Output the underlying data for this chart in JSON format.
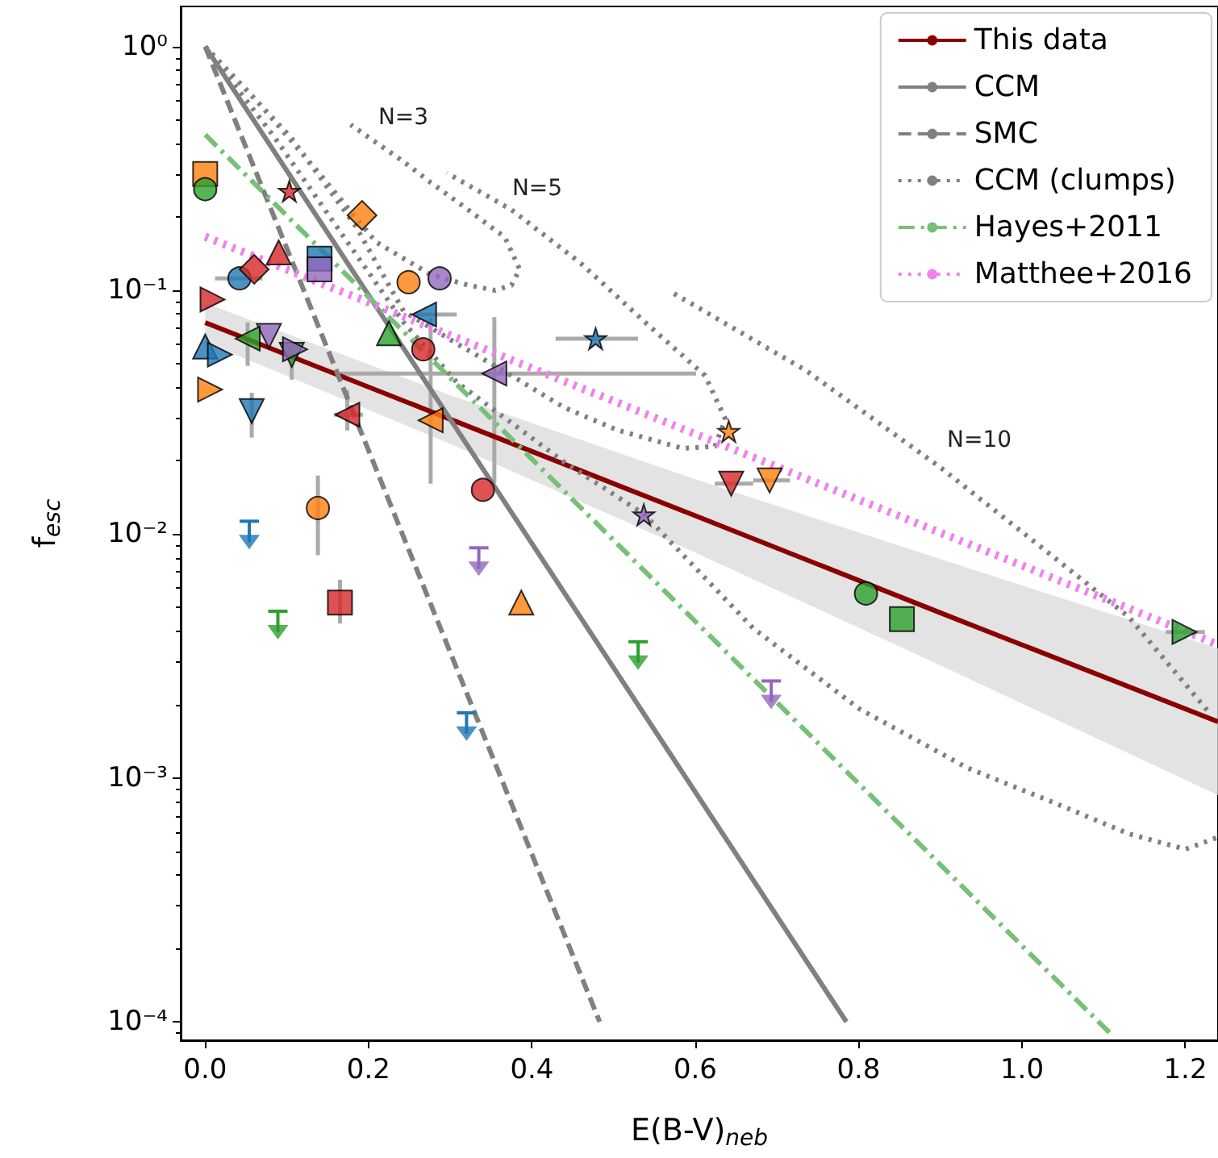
{
  "chart_data": {
    "type": "scatter",
    "xlabel": "E(B-V)$_{neb}$",
    "ylabel": "f$_{esc}$",
    "log": "y",
    "grid": false,
    "legend": "top right",
    "xlim": [
      -0.03,
      1.24
    ],
    "ylim": [
      8.4e-05,
      1.46
    ],
    "xticks": [
      {
        "value": 0,
        "label": "0.0"
      },
      {
        "value": 0.2,
        "label": "0.2"
      },
      {
        "value": 0.4,
        "label": "0.4"
      },
      {
        "value": 0.6,
        "label": "0.6"
      },
      {
        "value": 0.8,
        "label": "0.8"
      },
      {
        "value": 1.0,
        "label": "1.0"
      },
      {
        "value": 1.2,
        "label": "1.2"
      }
    ],
    "yticks": [
      {
        "value": 0.0001,
        "label": "10⁻⁴"
      },
      {
        "value": 0.001,
        "label": "10⁻³"
      },
      {
        "value": 0.01,
        "label": "10⁻²"
      },
      {
        "value": 0.1,
        "label": "10⁻¹"
      },
      {
        "value": 1,
        "label": "10⁰"
      }
    ],
    "annotations": [
      "N=3",
      "N=5",
      "N=10"
    ],
    "series": [
      {
        "name": "This data",
        "type": "line",
        "line_style": "solid",
        "color": "#8b0000",
        "x": [
          0,
          0.3,
          0.6,
          0.9,
          1.24
        ],
        "values": [
          0.0738,
          0.0296,
          0.0119,
          0.00476,
          0.0017
        ],
        "lower": [
          0.0614,
          0.0235,
          0.0084,
          0.0029,
          0.00085
        ],
        "upper": [
          0.0887,
          0.0372,
          0.0168,
          0.0079,
          0.0034
        ]
      },
      {
        "name": "CCM",
        "type": "line",
        "line_style": "solid",
        "color": "#808080",
        "x": [
          0,
          0.785
        ],
        "values": [
          1.0,
          0.0001
        ]
      },
      {
        "name": "SMC",
        "type": "line",
        "line_style": "dashed",
        "color": "#808080",
        "x": [
          0,
          0.483
        ],
        "values": [
          1.0,
          0.0001
        ]
      },
      {
        "name": "CCM (clumps)",
        "type": "line",
        "line_style": "dotted",
        "color": "#808080",
        "x": [
          0,
          0.065,
          0.144,
          0.209,
          0.276,
          0.322,
          0.355,
          0.375,
          0.385,
          0.367,
          0.322,
          0.276,
          0.243,
          0.178,
          null,
          0,
          0.105,
          0.184,
          0.243,
          0.308,
          0.375,
          0.44,
          0.505,
          0.584,
          0.624,
          0.637,
          0.612,
          0.539,
          0.46,
          0.375,
          0.296,
          null,
          0,
          0.085,
          0.174,
          0.243,
          0.308,
          0.44,
          0.537,
          0.671,
          0.801,
          0.933,
          1.032,
          1.131,
          1.2,
          1.239,
          null,
          0.574,
          0.736,
          0.9,
          1.032,
          1.131,
          1.23
        ],
        "values": [
          1.0,
          0.59,
          0.29,
          0.158,
          0.116,
          0.105,
          0.1,
          0.105,
          0.122,
          0.165,
          0.214,
          0.277,
          0.337,
          0.478,
          null,
          1.0,
          0.424,
          0.184,
          0.082,
          0.0605,
          0.0447,
          0.033,
          0.0267,
          0.0225,
          0.0229,
          0.0296,
          0.0447,
          0.0738,
          0.129,
          0.214,
          0.303,
          null,
          1.0,
          0.424,
          0.158,
          0.0738,
          0.042,
          0.0197,
          0.0121,
          0.00411,
          0.00192,
          0.0011,
          0.00081,
          0.00059,
          0.00051,
          0.00057,
          null,
          0.097,
          0.0468,
          0.0188,
          0.0084,
          0.00457,
          0.00184
        ]
      },
      {
        "name": "Hayes+2011",
        "type": "line",
        "line_style": "dashdot",
        "color": "#77c077",
        "x": [
          0,
          1.109
        ],
        "values": [
          0.435,
          8.9e-05
        ]
      },
      {
        "name": "Matthee+2016",
        "type": "line",
        "line_style": "dotted",
        "color": "#ee82ee",
        "x": [
          0,
          1.24
        ],
        "values": [
          0.166,
          0.00353
        ]
      },
      {
        "marker": "circle",
        "x": [
          0.042,
          0.249,
          0.34,
          0.809
        ],
        "values": [
          0.112,
          0.108,
          0.0152,
          0.00571
        ],
        "colors": [
          "#1f77b4",
          "#ff7f0e",
          "#d62728",
          "#2ca02c"
        ],
        "xerrors": [
          [
            0.012,
            0.07
          ],
          null,
          null,
          null
        ]
      },
      {
        "marker": "square",
        "x": [
          0,
          0.14,
          0.14,
          0.165,
          0.853
        ],
        "values": [
          0.3,
          0.135,
          0.122,
          0.00524,
          0.00448
        ],
        "colors": [
          "#ff7f0e",
          "#1f77b4",
          "#9467bd",
          "#d62728",
          "#2ca02c"
        ],
        "errors": [
          null,
          null,
          null,
          [
            0.0043,
            0.0065
          ],
          null
        ]
      },
      {
        "marker": "diamond",
        "x": [
          0.192,
          0.06
        ],
        "values": [
          0.203,
          0.122
        ],
        "colors": [
          "#ff7f0e",
          "#d62728"
        ]
      },
      {
        "marker": "triangle",
        "x": [
          0.09,
          0,
          0.225,
          0.387
        ],
        "values": [
          0.143,
          0.0588,
          0.0667,
          0.00524
        ],
        "colors": [
          "#d62728",
          "#1f77b4",
          "#2ca02c",
          "#ff7f0e"
        ]
      },
      {
        "marker": "triangle-down",
        "x": [
          0.078,
          0.106,
          0.057,
          0.644,
          0.691
        ],
        "values": [
          0.065,
          0.0544,
          0.032,
          0.0161,
          0.0166
        ],
        "colors": [
          "#9467bd",
          "#2ca02c",
          "#1f77b4",
          "#d62728",
          "#ff7f0e"
        ],
        "errors": [
          null,
          [
            0.043,
            0.0605
          ],
          [
            0.0249,
            0.038
          ],
          null,
          null
        ],
        "xerrors": [
          null,
          null,
          null,
          [
            0.624,
            0.671
          ],
          [
            0.671,
            0.716
          ]
        ]
      },
      {
        "marker": "triangle-left",
        "x": [
          0.268,
          0.052,
          0.354,
          0.174,
          0.276
        ],
        "values": [
          0.0796,
          0.0634,
          0.0456,
          0.0309,
          0.0293
        ],
        "colors": [
          "#1f77b4",
          "#2ca02c",
          "#9467bd",
          "#d62728",
          "#ff7f0e"
        ],
        "errors": [
          null,
          [
            0.049,
            0.0739
          ],
          [
            0.0162,
            0.0776
          ],
          [
            0.0266,
            0.039
          ],
          [
            0.0161,
            0.0772
          ]
        ],
        "xerrors": [
          [
            0.257,
            0.308
          ],
          null,
          [
            0.164,
            0.601
          ],
          [
            0.158,
            0.193
          ],
          null
        ]
      },
      {
        "marker": "triangle-right",
        "x": [
          0.009,
          0.018,
          0.11,
          0.006,
          1.199
        ],
        "values": [
          0.0917,
          0.0545,
          0.0573,
          0.0392,
          0.00397
        ],
        "colors": [
          "#d62728",
          "#1f77b4",
          "#9467bd",
          "#ff7f0e",
          "#2ca02c"
        ],
        "xerrors": [
          null,
          null,
          null,
          null,
          [
            1.176,
            1.224
          ]
        ]
      },
      {
        "marker": "circle",
        "x": [
          0,
          0.287,
          0.267,
          0.138
        ],
        "values": [
          0.26,
          0.112,
          0.0573,
          0.0128
        ],
        "colors": [
          "#2ca02c",
          "#9467bd",
          "#d62728",
          "#ff7f0e"
        ],
        "errors": [
          null,
          null,
          null,
          [
            0.0082,
            0.0174
          ]
        ]
      },
      {
        "marker": "star",
        "x": [
          0.103,
          0.478,
          0.641,
          0.537
        ],
        "values": [
          0.255,
          0.0634,
          0.0264,
          0.012
        ],
        "colors": [
          "#d62728",
          "#1f77b4",
          "#ff7f0e",
          "#9467bd"
        ],
        "xerrors": [
          null,
          [
            0.429,
            0.53
          ],
          null,
          null
        ]
      },
      {
        "marker": "triangle-down",
        "color": "#1f77b4",
        "x": [
          0.054,
          0.32
        ],
        "values": [
          0.00927,
          0.00152
        ],
        "errors": [
          [
            0.00927,
            0.0113
          ],
          [
            0.00152,
            0.00185
          ]
        ]
      },
      {
        "marker": "triangle-down",
        "color": "#2ca02c",
        "x": [
          0.089,
          0.53
        ],
        "values": [
          0.00396,
          0.00297
        ],
        "errors": [
          [
            0.00396,
            0.00483
          ],
          [
            0.00297,
            0.00362
          ]
        ]
      },
      {
        "marker": "triangle-down",
        "color": "#9467bd",
        "x": [
          0.335,
          0.693
        ],
        "values": [
          0.00721,
          0.00205
        ],
        "errors": [
          [
            0.00721,
            0.00879
          ],
          [
            0.00205,
            0.0025
          ]
        ]
      }
    ]
  }
}
